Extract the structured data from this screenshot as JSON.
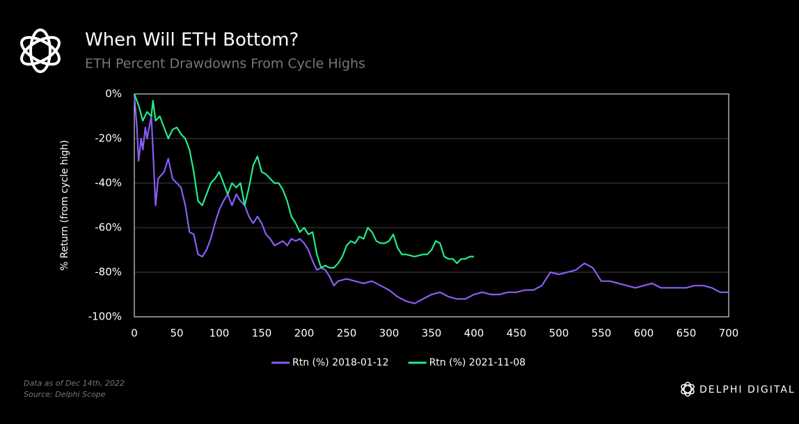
{
  "chart_data": {
    "type": "line",
    "title": "When Will ETH Bottom?",
    "subtitle": "ETH Percent Drawdowns From Cycle Highs",
    "y_label": "% Return (from cycle high)",
    "note": "Data as of Dec 14th, 2022",
    "source": "Source: Delphi Scope",
    "brand": "DELPHI DIGITAL",
    "xlim": [
      0,
      700
    ],
    "xticks": [
      0,
      50,
      100,
      150,
      200,
      250,
      300,
      350,
      400,
      450,
      500,
      550,
      600,
      650,
      700
    ],
    "ylim": [
      -100,
      0
    ],
    "yticks": [
      {
        "value": 0,
        "label": "0%"
      },
      {
        "value": -20,
        "label": "-20%"
      },
      {
        "value": -40,
        "label": "-40%"
      },
      {
        "value": -60,
        "label": "-60%"
      },
      {
        "value": -80,
        "label": "-80%"
      },
      {
        "value": -100,
        "label": "-100%"
      }
    ],
    "grid": true,
    "legend": "bottom",
    "series": [
      {
        "name": "Rtn (%) 2018-01-12",
        "color": "#8b5cf6",
        "x": [
          0,
          3,
          5,
          8,
          10,
          13,
          15,
          20,
          22,
          25,
          28,
          35,
          40,
          45,
          50,
          55,
          60,
          65,
          70,
          75,
          80,
          85,
          90,
          95,
          100,
          105,
          110,
          115,
          120,
          125,
          130,
          135,
          140,
          145,
          150,
          155,
          160,
          165,
          170,
          175,
          180,
          185,
          190,
          195,
          200,
          205,
          210,
          215,
          220,
          225,
          230,
          235,
          240,
          250,
          260,
          270,
          280,
          290,
          300,
          310,
          320,
          330,
          340,
          350,
          360,
          370,
          380,
          390,
          400,
          410,
          420,
          430,
          440,
          450,
          460,
          470,
          480,
          490,
          500,
          510,
          520,
          530,
          540,
          550,
          560,
          570,
          580,
          590,
          600,
          610,
          620,
          630,
          640,
          650,
          660,
          670,
          680,
          690,
          700
        ],
        "values": [
          0,
          -15,
          -30,
          -20,
          -25,
          -15,
          -20,
          -10,
          -25,
          -50,
          -38,
          -35,
          -29,
          -38,
          -40,
          -42,
          -50,
          -62,
          -63,
          -72,
          -73,
          -70,
          -65,
          -58,
          -52,
          -48,
          -45,
          -50,
          -45,
          -48,
          -50,
          -55,
          -58,
          -55,
          -58,
          -63,
          -65,
          -68,
          -67,
          -66,
          -68,
          -65,
          -66,
          -65,
          -67,
          -70,
          -75,
          -79,
          -78,
          -79,
          -82,
          -86,
          -84,
          -83,
          -84,
          -85,
          -84,
          -86,
          -88,
          -91,
          -93,
          -94,
          -92,
          -90,
          -89,
          -91,
          -92,
          -92,
          -90,
          -89,
          -90,
          -90,
          -89,
          -89,
          -88,
          -88,
          -86,
          -80,
          -81,
          -80,
          -79,
          -76,
          -78,
          -84,
          -84,
          -85,
          -86,
          -87,
          -86,
          -85,
          -87,
          -87,
          -87,
          -87,
          -86,
          -86,
          -87,
          -89,
          -89
        ]
      },
      {
        "name": "Rtn (%) 2021-11-08",
        "color": "#22ee88",
        "x": [
          0,
          5,
          10,
          15,
          20,
          22,
          25,
          30,
          35,
          40,
          45,
          50,
          55,
          60,
          65,
          70,
          75,
          80,
          85,
          90,
          95,
          100,
          105,
          110,
          115,
          120,
          125,
          130,
          135,
          140,
          145,
          150,
          155,
          160,
          165,
          170,
          175,
          180,
          185,
          190,
          195,
          200,
          205,
          210,
          215,
          220,
          225,
          230,
          235,
          240,
          245,
          250,
          255,
          260,
          265,
          270,
          275,
          280,
          285,
          290,
          295,
          300,
          305,
          310,
          315,
          320,
          330,
          340,
          345,
          350,
          355,
          360,
          365,
          370,
          375,
          380,
          385,
          390,
          395,
          400
        ],
        "values": [
          0,
          -5,
          -12,
          -8,
          -10,
          -3,
          -12,
          -10,
          -15,
          -20,
          -16,
          -15,
          -18,
          -20,
          -25,
          -35,
          -48,
          -50,
          -45,
          -40,
          -38,
          -35,
          -40,
          -45,
          -40,
          -42,
          -40,
          -50,
          -42,
          -32,
          -28,
          -35,
          -36,
          -38,
          -40,
          -40,
          -43,
          -48,
          -55,
          -58,
          -62,
          -60,
          -63,
          -62,
          -72,
          -78,
          -77,
          -78,
          -78,
          -76,
          -73,
          -68,
          -66,
          -67,
          -64,
          -65,
          -60,
          -62,
          -66,
          -67,
          -67,
          -66,
          -63,
          -69,
          -72,
          -72,
          -73,
          -72,
          -72,
          -70,
          -66,
          -67,
          -73,
          -74,
          -74,
          -76,
          -74,
          -74,
          -73,
          -73
        ]
      }
    ]
  }
}
